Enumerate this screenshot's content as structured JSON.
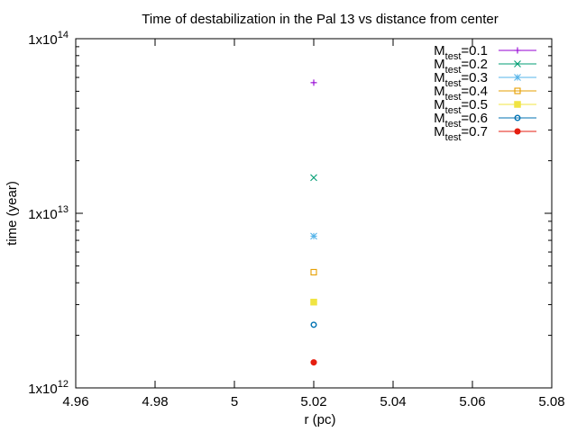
{
  "chart_data": {
    "type": "scatter",
    "title": "Time of destabilization in the Pal 13 vs distance from center",
    "xlabel": "r (pc)",
    "ylabel": "time (year)",
    "xlim": [
      4.96,
      5.08
    ],
    "ylim": [
      1000000000000.0,
      100000000000000.0
    ],
    "yscale": "log",
    "xticks": [
      4.96,
      4.98,
      5.0,
      5.02,
      5.04,
      5.06,
      5.08
    ],
    "xtick_labels": [
      "4.96",
      "4.98",
      "5",
      "5.02",
      "5.04",
      "5.06",
      "5.08"
    ],
    "yticks": [
      {
        "value": 1000000000000.0,
        "base": "1x10",
        "exp": "12"
      },
      {
        "value": 10000000000000.0,
        "base": "1x10",
        "exp": "13"
      },
      {
        "value": 100000000000000.0,
        "base": "1x10",
        "exp": "14"
      }
    ],
    "legend_position": "top-right",
    "series": [
      {
        "name": "M",
        "sub": "test",
        "suffix": "=0.1",
        "color": "#9400d3",
        "marker": "plus",
        "points": [
          {
            "x": 5.02,
            "y": 56000000000000.0
          }
        ]
      },
      {
        "name": "M",
        "sub": "test",
        "suffix": "=0.2",
        "color": "#009e73",
        "marker": "cross",
        "points": [
          {
            "x": 5.02,
            "y": 16000000000000.0
          }
        ]
      },
      {
        "name": "M",
        "sub": "test",
        "suffix": "=0.3",
        "color": "#56b4e9",
        "marker": "star",
        "points": [
          {
            "x": 5.02,
            "y": 7400000000000.0
          }
        ]
      },
      {
        "name": "M",
        "sub": "test",
        "suffix": "=0.4",
        "color": "#e69f00",
        "marker": "square-open",
        "points": [
          {
            "x": 5.02,
            "y": 4600000000000.0
          }
        ]
      },
      {
        "name": "M",
        "sub": "test",
        "suffix": "=0.5",
        "color": "#f0e442",
        "marker": "square-filled",
        "points": [
          {
            "x": 5.02,
            "y": 3100000000000.0
          }
        ]
      },
      {
        "name": "M",
        "sub": "test",
        "suffix": "=0.6",
        "color": "#0072b2",
        "marker": "circle-open",
        "points": [
          {
            "x": 5.02,
            "y": 2300000000000.0
          }
        ]
      },
      {
        "name": "M",
        "sub": "test",
        "suffix": "=0.7",
        "color": "#e51e10",
        "marker": "circle-filled",
        "points": [
          {
            "x": 5.02,
            "y": 1400000000000.0
          }
        ]
      }
    ]
  }
}
